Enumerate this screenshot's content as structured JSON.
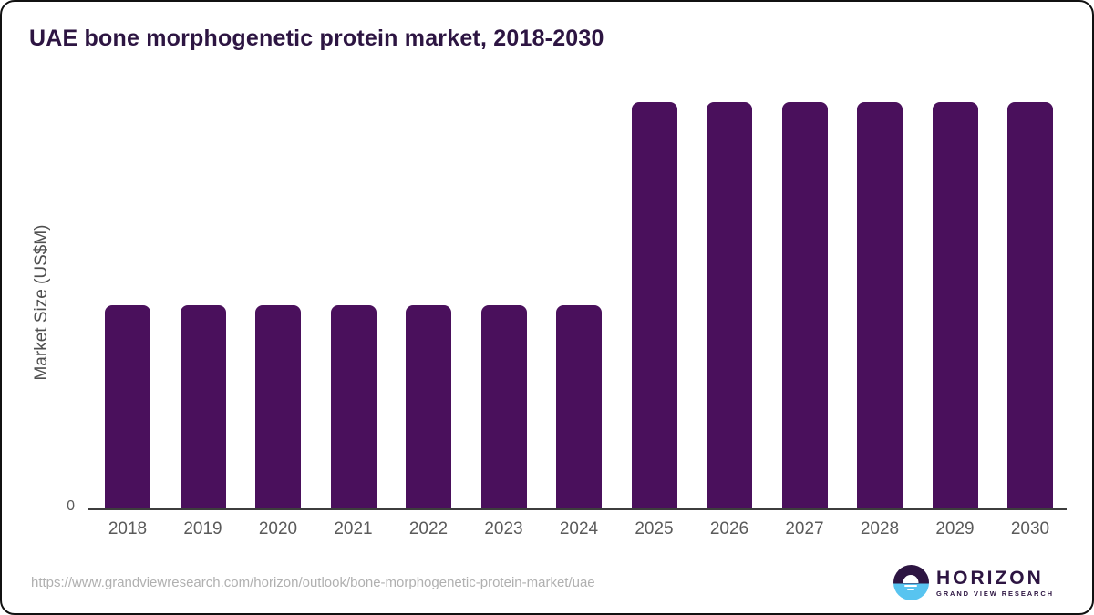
{
  "header": {
    "title": "UAE bone morphogenetic protein market, 2018-2030"
  },
  "chart_data": {
    "type": "bar",
    "title": "UAE bone morphogenetic protein market, 2018-2030",
    "categories": [
      "2018",
      "2019",
      "2020",
      "2021",
      "2022",
      "2023",
      "2024",
      "2025",
      "2026",
      "2027",
      "2028",
      "2029",
      "2030"
    ],
    "values": [
      0.5,
      0.5,
      0.5,
      0.5,
      0.5,
      0.5,
      0.5,
      1.0,
      1.0,
      1.0,
      1.0,
      1.0,
      1.0
    ],
    "value_scale": "normalized to tallest bar; no numeric data labels shown on chart",
    "xlabel": "",
    "ylabel": "Market Size (US$M)",
    "ylim": [
      0,
      1.0
    ],
    "y_tick_labels": [
      "0"
    ],
    "grid": false,
    "legend_position": "none",
    "bar_color": "#4A105C"
  },
  "axis": {
    "zero_label": "0",
    "y_axis_label": "Market Size (US$M)"
  },
  "footer": {
    "source_url": "https://www.grandviewresearch.com/horizon/outlook/bone-morphogenetic-protein-market/uae",
    "logo_text": "HORIZON",
    "logo_subtext": "GRAND VIEW RESEARCH"
  },
  "colors": {
    "bar": "#4A105C",
    "title": "#2D1542",
    "axis": "#3D3D3D",
    "tick": "#5A5A5A",
    "ylabel": "#4F4F4F",
    "muted": "#B0B0B0",
    "logo_purple": "#2D1542",
    "logo_blue": "#58C4F0"
  }
}
